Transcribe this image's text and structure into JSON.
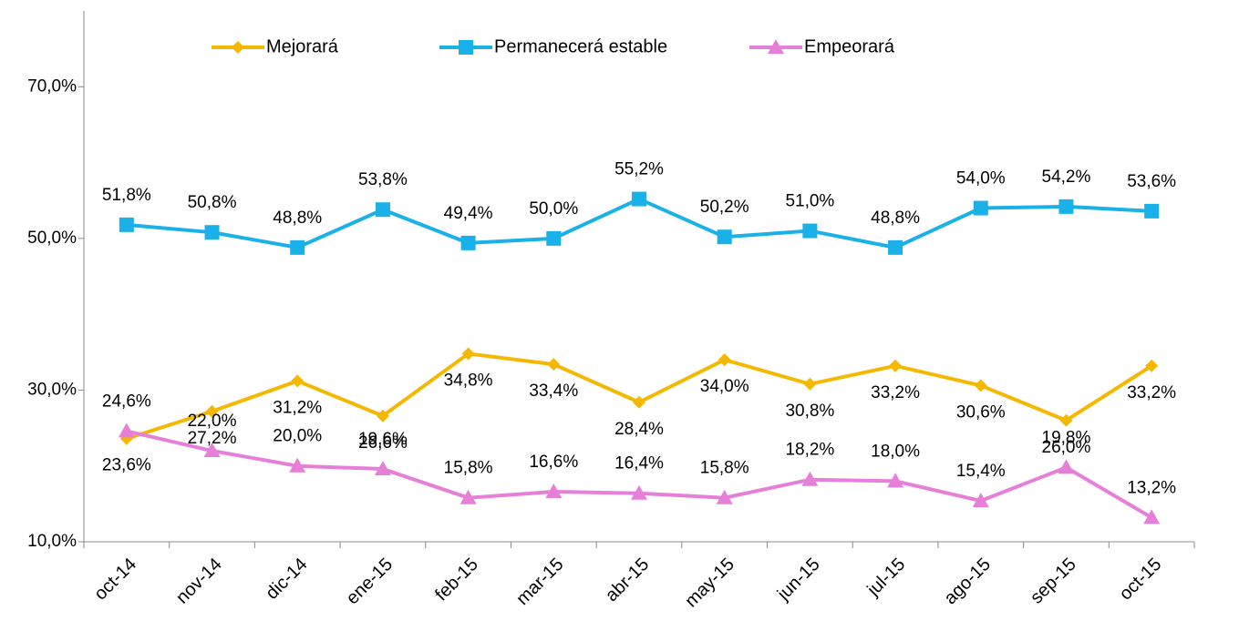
{
  "chart_data": {
    "type": "line",
    "categories": [
      "oct-14",
      "nov-14",
      "dic-14",
      "ene-15",
      "feb-15",
      "mar-15",
      "abr-15",
      "may-15",
      "jun-15",
      "jul-15",
      "ago-15",
      "sep-15",
      "oct-15"
    ],
    "series": [
      {
        "name": "Mejorará",
        "color": "#f5b800",
        "marker": "diamond",
        "values": [
          23.6,
          27.2,
          31.2,
          26.6,
          34.8,
          33.4,
          28.4,
          34.0,
          30.8,
          33.2,
          30.6,
          26.0,
          33.2
        ],
        "value_labels": [
          "23,6%",
          "27,2%",
          "31,2%",
          "26,6%",
          "34,8%",
          "33,4%",
          "28,4%",
          "34,0%",
          "30,8%",
          "33,2%",
          "30,6%",
          "26,0%",
          "33,2%"
        ]
      },
      {
        "name": "Permanecerá estable",
        "color": "#1ab0e8",
        "marker": "square",
        "values": [
          51.8,
          50.8,
          48.8,
          53.8,
          49.4,
          50.0,
          55.2,
          50.2,
          51.0,
          48.8,
          54.0,
          54.2,
          53.6
        ],
        "value_labels": [
          "51,8%",
          "50,8%",
          "48,8%",
          "53,8%",
          "49,4%",
          "50,0%",
          "55,2%",
          "50,2%",
          "51,0%",
          "48,8%",
          "54,0%",
          "54,2%",
          "53,6%"
        ]
      },
      {
        "name": "Empeorará",
        "color": "#e57fd8",
        "marker": "triangle",
        "values": [
          24.6,
          22.0,
          20.0,
          19.6,
          15.8,
          16.6,
          16.4,
          15.8,
          18.2,
          18.0,
          15.4,
          19.8,
          13.2
        ],
        "value_labels": [
          "24,6%",
          "22,0%",
          "20,0%",
          "19,6%",
          "15,8%",
          "16,6%",
          "16,4%",
          "15,8%",
          "18,2%",
          "18,0%",
          "15,4%",
          "19,8%",
          "13,2%"
        ]
      }
    ],
    "ylim": [
      10,
      80
    ],
    "yticks": [
      {
        "value": 10,
        "label": "10,0%"
      },
      {
        "value": 30,
        "label": "30,0%"
      },
      {
        "value": 50,
        "label": "50,0%"
      },
      {
        "value": 70,
        "label": "70,0%"
      }
    ],
    "legend": "top"
  }
}
